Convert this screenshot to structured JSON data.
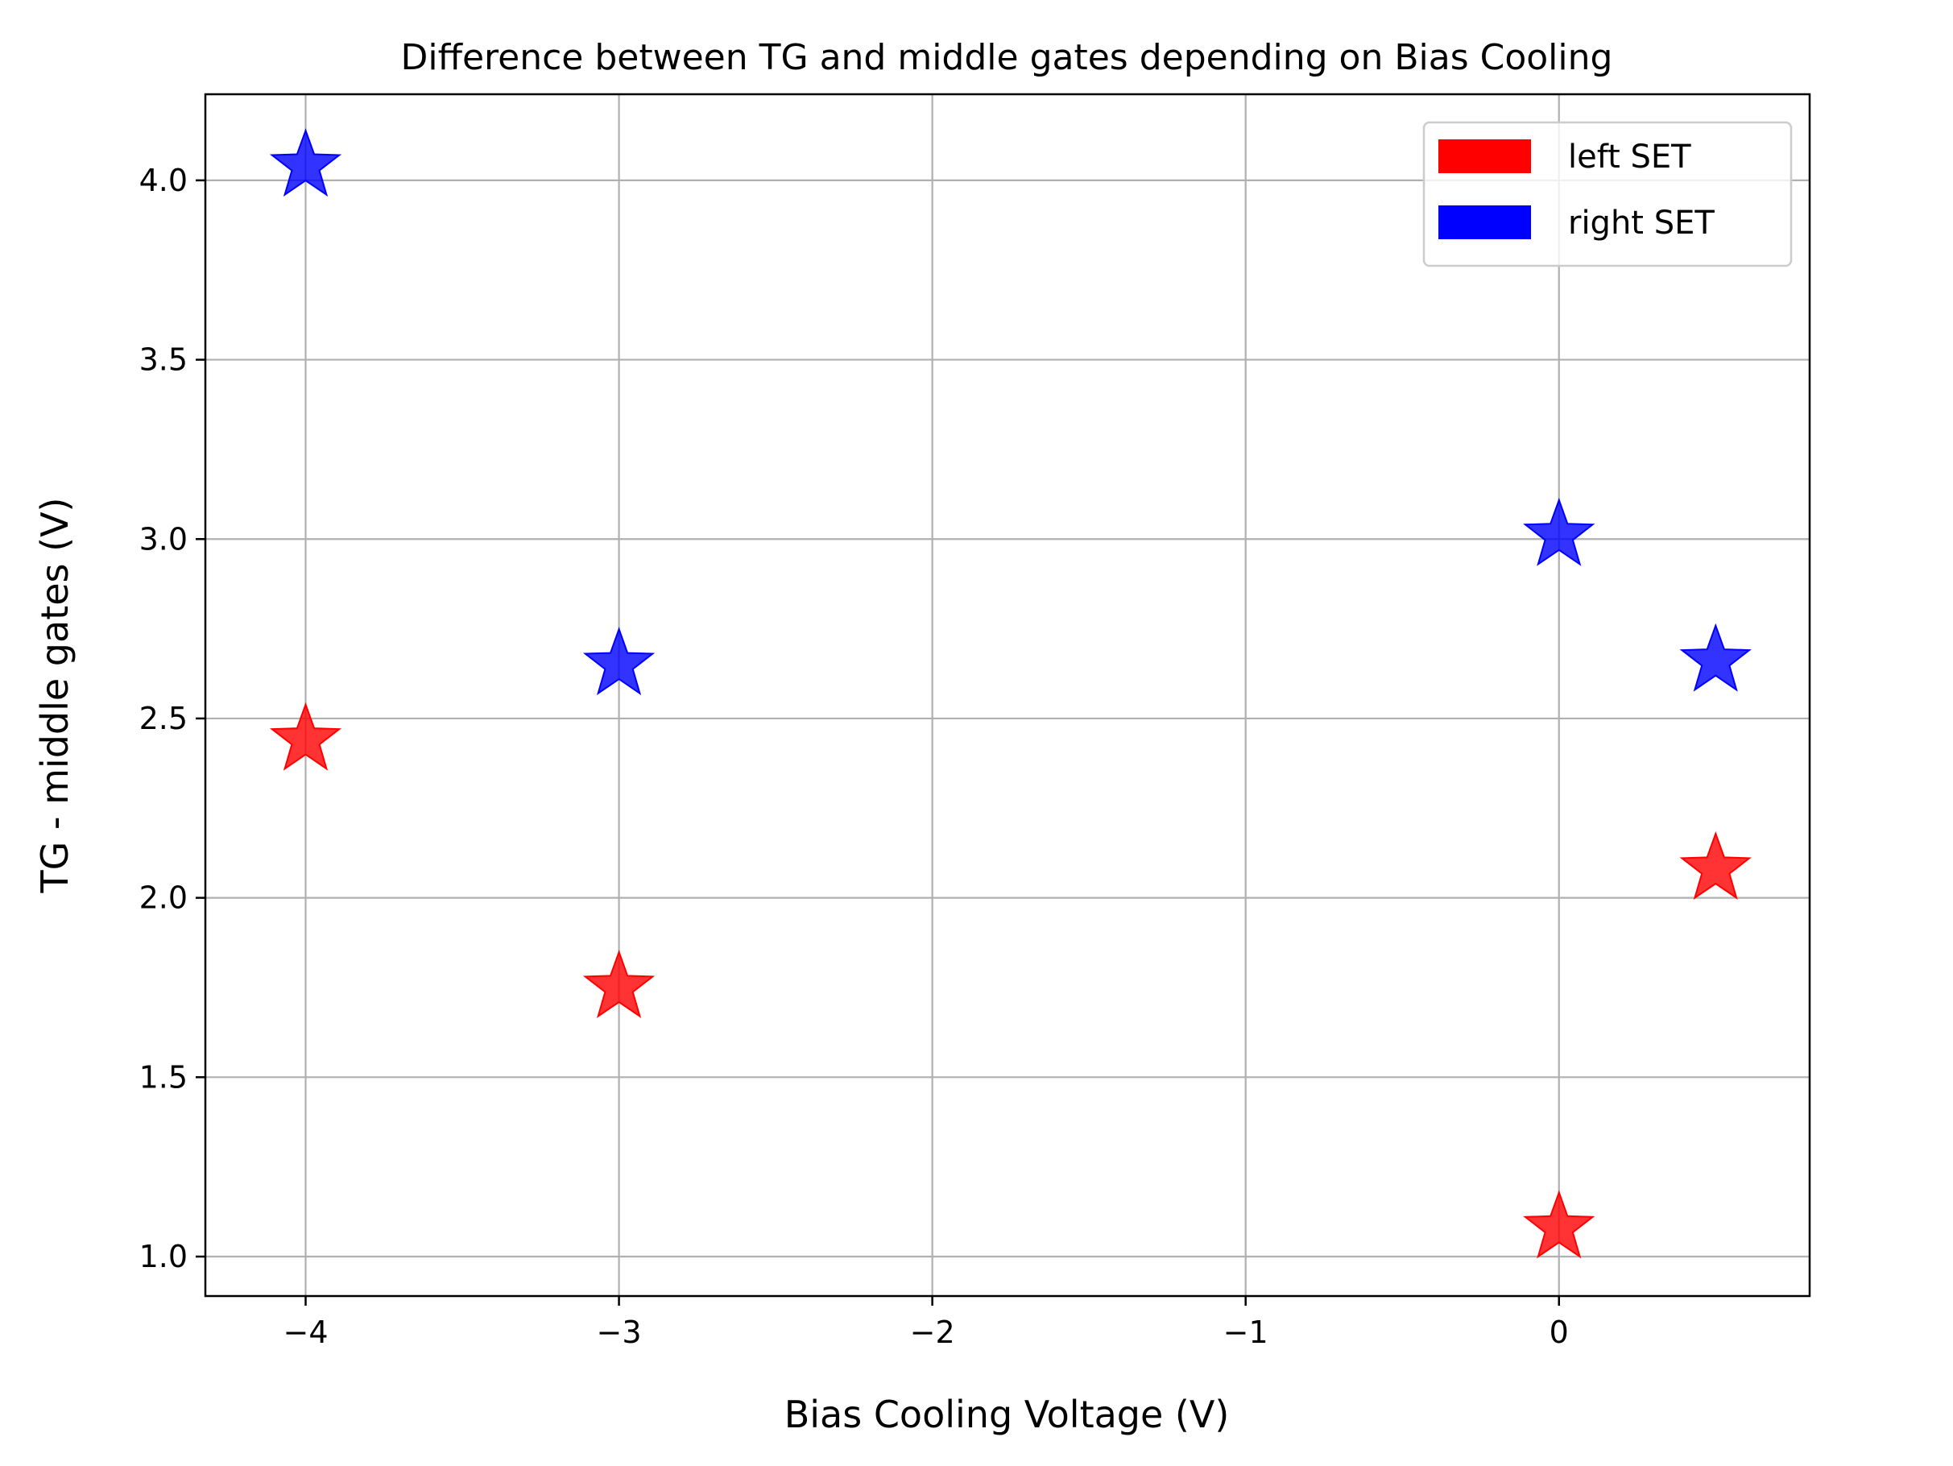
{
  "chart_data": {
    "type": "scatter",
    "title": "Difference between TG and middle gates depending on Bias Cooling",
    "xlabel": "Bias Cooling Voltage (V)",
    "ylabel": "TG - middle gates (V)",
    "xlim": [
      -4.32,
      0.8
    ],
    "ylim": [
      0.89,
      4.24
    ],
    "x_ticks": [
      -4,
      -3,
      -2,
      -1,
      0
    ],
    "x_tick_labels": [
      "−4",
      "−3",
      "−2",
      "−1",
      "0"
    ],
    "y_ticks": [
      1.0,
      1.5,
      2.0,
      2.5,
      3.0,
      3.5,
      4.0
    ],
    "y_tick_labels": [
      "1.0",
      "1.5",
      "2.0",
      "2.5",
      "3.0",
      "3.5",
      "4.0"
    ],
    "grid": true,
    "marker": "star",
    "legend_position": "top-right",
    "series": [
      {
        "name": "left SET",
        "color": "#ff0000",
        "points": [
          [
            -4,
            2.44
          ],
          [
            -3,
            1.75
          ],
          [
            0,
            1.08
          ],
          [
            0.5,
            2.08
          ]
        ]
      },
      {
        "name": "right SET",
        "color": "#0000ff",
        "points": [
          [
            -4,
            4.04
          ],
          [
            -3,
            2.65
          ],
          [
            0,
            3.01
          ],
          [
            0.5,
            2.66
          ]
        ]
      }
    ]
  }
}
